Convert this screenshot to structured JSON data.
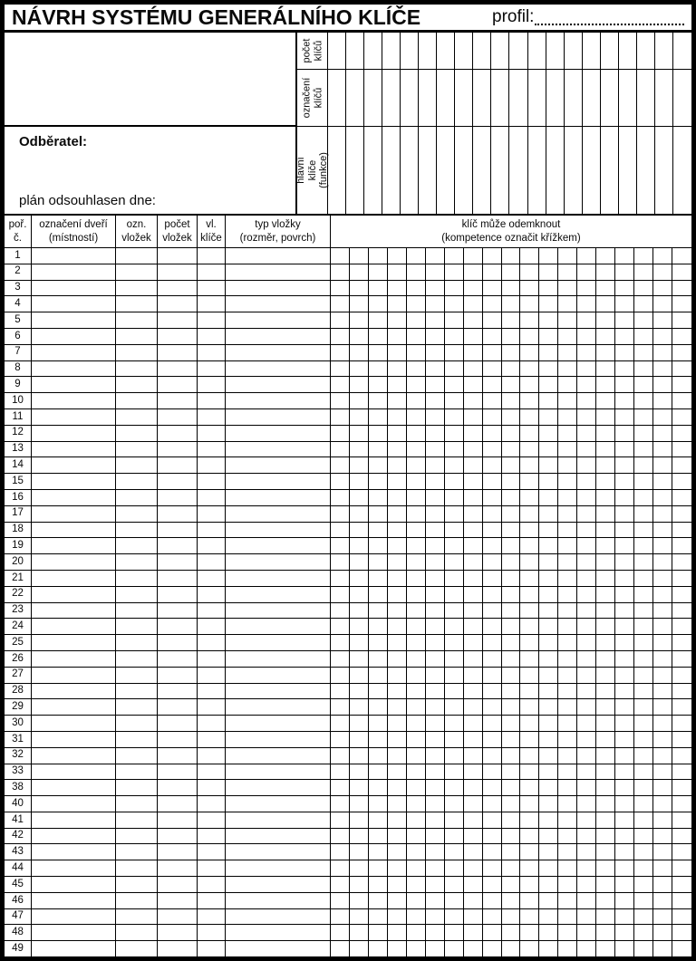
{
  "page": {
    "title": "NÁVRH SYSTÉMU GENERÁLNÍHO KLÍČE",
    "profile_label": "profil:"
  },
  "customer": {
    "label": "Odběratel:",
    "plan_approved_label": "plán odsouhlasen dne:"
  },
  "key_bands": [
    {
      "label": "počet\nklíčů",
      "columns": 20
    },
    {
      "label": "označení\nklíčů",
      "columns": 20
    },
    {
      "label": "hlavní klíče\n(funkce)",
      "columns": 20
    }
  ],
  "table": {
    "headers": [
      "poř.\nč.",
      "označení dveří\n(místností)",
      "ozn.\nvložek",
      "počet\nvložek",
      "vl.\nklíče",
      "typ vložky\n(rozměr, povrch)"
    ],
    "grid_header": "klíč může odemknout\n(kompetence označit křížkem)",
    "grid_columns": 19,
    "row_numbers": [
      "1",
      "2",
      "3",
      "4",
      "5",
      "6",
      "7",
      "8",
      "9",
      "10",
      "11",
      "12",
      "13",
      "14",
      "15",
      "16",
      "17",
      "18",
      "19",
      "20",
      "21",
      "22",
      "23",
      "24",
      "25",
      "26",
      "27",
      "28",
      "29",
      "30",
      "31",
      "32",
      "33",
      "38",
      "40",
      "41",
      "42",
      "43",
      "44",
      "45",
      "46",
      "47",
      "48",
      "49"
    ]
  }
}
